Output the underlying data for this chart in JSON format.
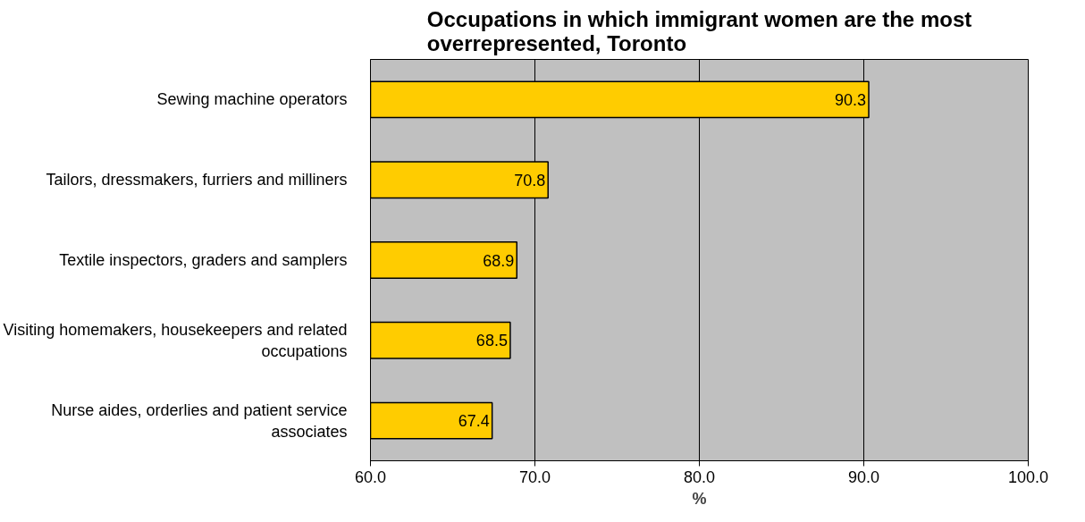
{
  "chart_data": {
    "type": "bar",
    "orientation": "horizontal",
    "title": "Occupations in which immigrant women are the most overrepresented, Toronto",
    "xlabel": "%",
    "categories": [
      "Sewing machine operators",
      "Tailors, dressmakers, furriers and milliners",
      "Textile inspectors, graders and samplers",
      "Visiting homemakers, housekeepers and related occupations",
      "Nurse aides, orderlies and patient service associates"
    ],
    "values": [
      90.3,
      70.8,
      68.9,
      68.5,
      67.4
    ],
    "color": "#ffcc00",
    "data_labels": true,
    "xlim": [
      60,
      100
    ],
    "xticks": [
      {
        "value": 60,
        "label": "60.0"
      },
      {
        "value": 70,
        "label": "70.0"
      },
      {
        "value": 80,
        "label": "80.0"
      },
      {
        "value": 90,
        "label": "90.0"
      },
      {
        "value": 100,
        "label": "100.0"
      }
    ],
    "grid": "x"
  }
}
